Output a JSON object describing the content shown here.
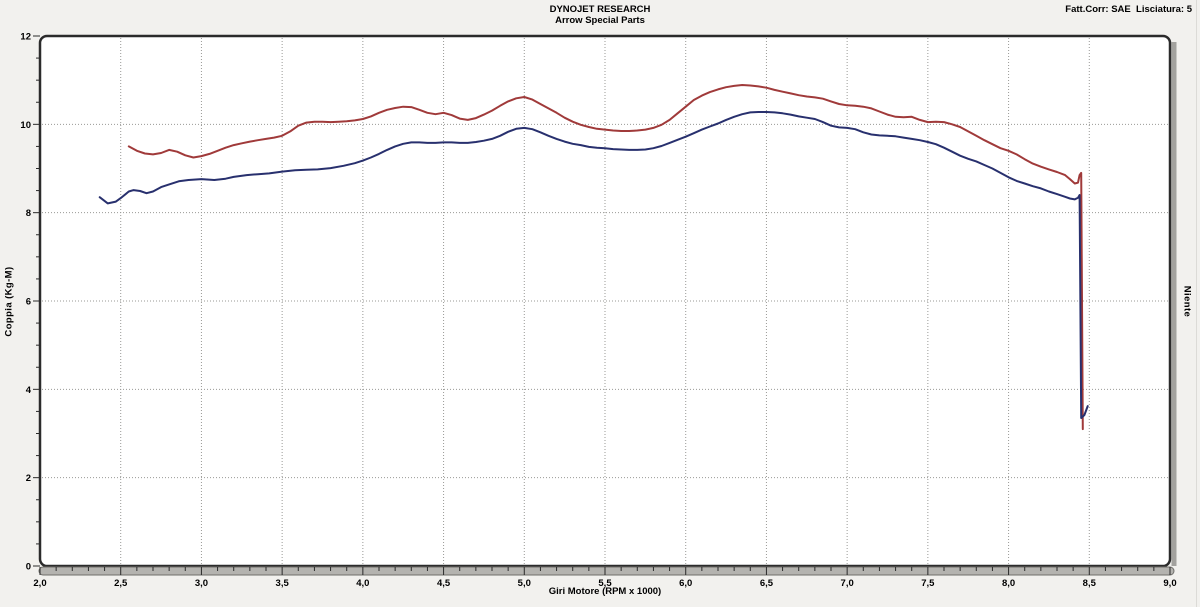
{
  "header": {
    "title": "DYNOJET RESEARCH",
    "subtitle": "Arrow Special Parts",
    "correction_info": "Fatt.Corr: SAE  Lisciatura: 5"
  },
  "chart_data": {
    "type": "line",
    "title": "DYNOJET RESEARCH",
    "subtitle": "Arrow Special Parts",
    "xlabel": "Giri Motore (RPM x 1000)",
    "ylabel_left": "Coppia (Kg-M)",
    "ylabel_right": "Niente",
    "xlim": [
      2.0,
      9.0
    ],
    "ylim": [
      0,
      12
    ],
    "x_major_step": 0.5,
    "x_minor_step": 0.1,
    "y_label_step": 2,
    "y_minor_step": 0.5,
    "x_tick_labels": [
      "2,0",
      "2,5",
      "3,0",
      "3,5",
      "4,0",
      "4,5",
      "5,0",
      "5,5",
      "6,0",
      "6,5",
      "7,0",
      "7,5",
      "8,0",
      "8,5",
      "9,0"
    ],
    "y_tick_labels": [
      "0",
      "2",
      "4",
      "6",
      "8",
      "10",
      "12"
    ],
    "grid": "dotted",
    "grid_color": "#999996",
    "legend": "none",
    "series": [
      {
        "name": "torque-red",
        "color": "#a03a3a",
        "points": [
          [
            2.55,
            9.5
          ],
          [
            2.6,
            9.4
          ],
          [
            2.65,
            9.34
          ],
          [
            2.7,
            9.32
          ],
          [
            2.75,
            9.35
          ],
          [
            2.8,
            9.42
          ],
          [
            2.85,
            9.38
          ],
          [
            2.9,
            9.3
          ],
          [
            2.95,
            9.25
          ],
          [
            3.0,
            9.28
          ],
          [
            3.05,
            9.33
          ],
          [
            3.1,
            9.4
          ],
          [
            3.15,
            9.47
          ],
          [
            3.2,
            9.53
          ],
          [
            3.25,
            9.57
          ],
          [
            3.3,
            9.61
          ],
          [
            3.35,
            9.64
          ],
          [
            3.4,
            9.67
          ],
          [
            3.45,
            9.7
          ],
          [
            3.5,
            9.74
          ],
          [
            3.55,
            9.84
          ],
          [
            3.6,
            9.97
          ],
          [
            3.65,
            10.04
          ],
          [
            3.7,
            10.06
          ],
          [
            3.75,
            10.06
          ],
          [
            3.8,
            10.05
          ],
          [
            3.85,
            10.06
          ],
          [
            3.9,
            10.07
          ],
          [
            3.95,
            10.09
          ],
          [
            4.0,
            10.12
          ],
          [
            4.05,
            10.18
          ],
          [
            4.1,
            10.26
          ],
          [
            4.15,
            10.33
          ],
          [
            4.2,
            10.37
          ],
          [
            4.25,
            10.4
          ],
          [
            4.3,
            10.39
          ],
          [
            4.35,
            10.33
          ],
          [
            4.4,
            10.26
          ],
          [
            4.45,
            10.23
          ],
          [
            4.5,
            10.26
          ],
          [
            4.55,
            10.21
          ],
          [
            4.6,
            10.13
          ],
          [
            4.65,
            10.1
          ],
          [
            4.7,
            10.14
          ],
          [
            4.75,
            10.22
          ],
          [
            4.8,
            10.31
          ],
          [
            4.85,
            10.42
          ],
          [
            4.9,
            10.52
          ],
          [
            4.95,
            10.59
          ],
          [
            5.0,
            10.62
          ],
          [
            5.05,
            10.56
          ],
          [
            5.1,
            10.46
          ],
          [
            5.15,
            10.36
          ],
          [
            5.2,
            10.26
          ],
          [
            5.25,
            10.15
          ],
          [
            5.3,
            10.06
          ],
          [
            5.35,
            9.99
          ],
          [
            5.4,
            9.94
          ],
          [
            5.45,
            9.9
          ],
          [
            5.5,
            9.88
          ],
          [
            5.55,
            9.86
          ],
          [
            5.6,
            9.85
          ],
          [
            5.65,
            9.85
          ],
          [
            5.7,
            9.86
          ],
          [
            5.75,
            9.88
          ],
          [
            5.8,
            9.92
          ],
          [
            5.85,
            9.99
          ],
          [
            5.9,
            10.1
          ],
          [
            5.95,
            10.25
          ],
          [
            6.0,
            10.4
          ],
          [
            6.05,
            10.55
          ],
          [
            6.1,
            10.65
          ],
          [
            6.15,
            10.73
          ],
          [
            6.2,
            10.79
          ],
          [
            6.25,
            10.84
          ],
          [
            6.3,
            10.87
          ],
          [
            6.35,
            10.89
          ],
          [
            6.4,
            10.88
          ],
          [
            6.45,
            10.86
          ],
          [
            6.5,
            10.83
          ],
          [
            6.55,
            10.78
          ],
          [
            6.6,
            10.74
          ],
          [
            6.65,
            10.7
          ],
          [
            6.7,
            10.66
          ],
          [
            6.75,
            10.63
          ],
          [
            6.8,
            10.61
          ],
          [
            6.85,
            10.58
          ],
          [
            6.9,
            10.52
          ],
          [
            6.95,
            10.46
          ],
          [
            7.0,
            10.43
          ],
          [
            7.05,
            10.42
          ],
          [
            7.1,
            10.4
          ],
          [
            7.15,
            10.36
          ],
          [
            7.2,
            10.29
          ],
          [
            7.25,
            10.22
          ],
          [
            7.3,
            10.17
          ],
          [
            7.35,
            10.16
          ],
          [
            7.4,
            10.17
          ],
          [
            7.45,
            10.1
          ],
          [
            7.5,
            10.05
          ],
          [
            7.55,
            10.06
          ],
          [
            7.6,
            10.05
          ],
          [
            7.65,
            10.0
          ],
          [
            7.7,
            9.94
          ],
          [
            7.75,
            9.84
          ],
          [
            7.8,
            9.74
          ],
          [
            7.85,
            9.64
          ],
          [
            7.9,
            9.55
          ],
          [
            7.95,
            9.46
          ],
          [
            8.0,
            9.4
          ],
          [
            8.05,
            9.32
          ],
          [
            8.1,
            9.21
          ],
          [
            8.15,
            9.11
          ],
          [
            8.2,
            9.04
          ],
          [
            8.25,
            8.98
          ],
          [
            8.3,
            8.92
          ],
          [
            8.35,
            8.85
          ],
          [
            8.38,
            8.76
          ],
          [
            8.41,
            8.66
          ],
          [
            8.43,
            8.68
          ],
          [
            8.44,
            8.85
          ],
          [
            8.45,
            8.9
          ],
          [
            8.46,
            3.1
          ]
        ]
      },
      {
        "name": "torque-blue",
        "color": "#28306e",
        "points": [
          [
            2.37,
            8.35
          ],
          [
            2.42,
            8.21
          ],
          [
            2.47,
            8.25
          ],
          [
            2.5,
            8.33
          ],
          [
            2.55,
            8.48
          ],
          [
            2.58,
            8.51
          ],
          [
            2.62,
            8.49
          ],
          [
            2.66,
            8.44
          ],
          [
            2.7,
            8.48
          ],
          [
            2.75,
            8.58
          ],
          [
            2.8,
            8.64
          ],
          [
            2.86,
            8.71
          ],
          [
            2.92,
            8.74
          ],
          [
            3.0,
            8.76
          ],
          [
            3.08,
            8.74
          ],
          [
            3.15,
            8.77
          ],
          [
            3.2,
            8.81
          ],
          [
            3.28,
            8.85
          ],
          [
            3.35,
            8.87
          ],
          [
            3.42,
            8.89
          ],
          [
            3.5,
            8.93
          ],
          [
            3.58,
            8.96
          ],
          [
            3.65,
            8.97
          ],
          [
            3.72,
            8.98
          ],
          [
            3.8,
            9.01
          ],
          [
            3.88,
            9.06
          ],
          [
            3.95,
            9.12
          ],
          [
            4.0,
            9.18
          ],
          [
            4.05,
            9.25
          ],
          [
            4.1,
            9.33
          ],
          [
            4.15,
            9.42
          ],
          [
            4.2,
            9.5
          ],
          [
            4.25,
            9.56
          ],
          [
            4.3,
            9.59
          ],
          [
            4.35,
            9.59
          ],
          [
            4.4,
            9.58
          ],
          [
            4.45,
            9.58
          ],
          [
            4.5,
            9.59
          ],
          [
            4.55,
            9.59
          ],
          [
            4.6,
            9.58
          ],
          [
            4.65,
            9.58
          ],
          [
            4.7,
            9.6
          ],
          [
            4.75,
            9.63
          ],
          [
            4.8,
            9.67
          ],
          [
            4.85,
            9.74
          ],
          [
            4.9,
            9.83
          ],
          [
            4.95,
            9.9
          ],
          [
            5.0,
            9.92
          ],
          [
            5.05,
            9.89
          ],
          [
            5.1,
            9.82
          ],
          [
            5.15,
            9.74
          ],
          [
            5.2,
            9.67
          ],
          [
            5.25,
            9.61
          ],
          [
            5.3,
            9.56
          ],
          [
            5.35,
            9.53
          ],
          [
            5.4,
            9.49
          ],
          [
            5.45,
            9.47
          ],
          [
            5.5,
            9.46
          ],
          [
            5.55,
            9.44
          ],
          [
            5.6,
            9.43
          ],
          [
            5.65,
            9.42
          ],
          [
            5.7,
            9.42
          ],
          [
            5.75,
            9.43
          ],
          [
            5.8,
            9.46
          ],
          [
            5.85,
            9.51
          ],
          [
            5.9,
            9.58
          ],
          [
            5.95,
            9.65
          ],
          [
            6.0,
            9.72
          ],
          [
            6.05,
            9.8
          ],
          [
            6.1,
            9.88
          ],
          [
            6.15,
            9.95
          ],
          [
            6.2,
            10.02
          ],
          [
            6.25,
            10.1
          ],
          [
            6.3,
            10.17
          ],
          [
            6.35,
            10.23
          ],
          [
            6.4,
            10.27
          ],
          [
            6.45,
            10.28
          ],
          [
            6.5,
            10.28
          ],
          [
            6.55,
            10.27
          ],
          [
            6.6,
            10.25
          ],
          [
            6.65,
            10.22
          ],
          [
            6.7,
            10.18
          ],
          [
            6.75,
            10.15
          ],
          [
            6.8,
            10.12
          ],
          [
            6.85,
            10.05
          ],
          [
            6.9,
            9.97
          ],
          [
            6.95,
            9.93
          ],
          [
            7.0,
            9.92
          ],
          [
            7.05,
            9.89
          ],
          [
            7.1,
            9.82
          ],
          [
            7.15,
            9.77
          ],
          [
            7.2,
            9.75
          ],
          [
            7.25,
            9.74
          ],
          [
            7.3,
            9.73
          ],
          [
            7.35,
            9.7
          ],
          [
            7.4,
            9.67
          ],
          [
            7.45,
            9.64
          ],
          [
            7.5,
            9.6
          ],
          [
            7.55,
            9.55
          ],
          [
            7.6,
            9.47
          ],
          [
            7.65,
            9.38
          ],
          [
            7.7,
            9.29
          ],
          [
            7.75,
            9.22
          ],
          [
            7.8,
            9.16
          ],
          [
            7.85,
            9.08
          ],
          [
            7.9,
            9.0
          ],
          [
            7.95,
            8.9
          ],
          [
            8.0,
            8.8
          ],
          [
            8.05,
            8.72
          ],
          [
            8.1,
            8.66
          ],
          [
            8.15,
            8.6
          ],
          [
            8.2,
            8.55
          ],
          [
            8.25,
            8.48
          ],
          [
            8.3,
            8.42
          ],
          [
            8.35,
            8.36
          ],
          [
            8.38,
            8.32
          ],
          [
            8.41,
            8.3
          ],
          [
            8.43,
            8.34
          ],
          [
            8.44,
            8.4
          ],
          [
            8.45,
            3.35
          ],
          [
            8.47,
            3.42
          ],
          [
            8.49,
            3.62
          ]
        ]
      }
    ]
  }
}
